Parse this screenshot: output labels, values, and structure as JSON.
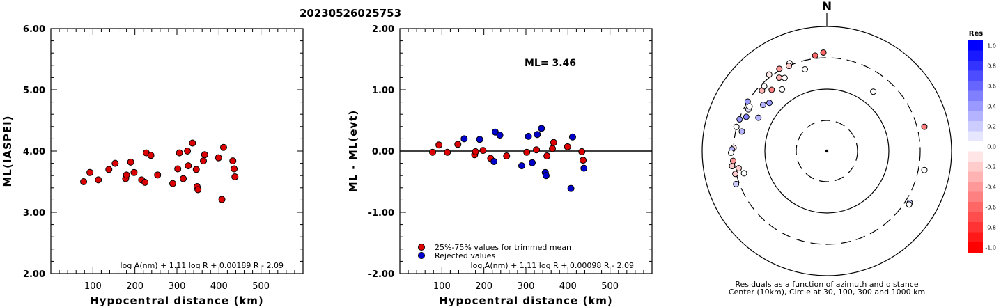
{
  "event_id": "20230526025753",
  "chart_data": [
    {
      "type": "scatter",
      "id": "left",
      "xlabel": "Hypocentral distance (km)",
      "ylabel": "ML(IASPEI)",
      "xlim": [
        0,
        600
      ],
      "ylim": [
        2.0,
        6.0
      ],
      "xticks": [
        "100",
        "200",
        "300",
        "400",
        "500"
      ],
      "yticks": [
        "2.00",
        "3.00",
        "4.00",
        "5.00",
        "6.00"
      ],
      "formula": "log A(nm) + 1.11 log R + 0.00189 R - 2.09",
      "series": [
        {
          "color": "#dd0000",
          "points": [
            [
              78,
              3.5
            ],
            [
              93,
              3.65
            ],
            [
              113,
              3.53
            ],
            [
              138,
              3.7
            ],
            [
              153,
              3.8
            ],
            [
              178,
              3.55
            ],
            [
              180,
              3.61
            ],
            [
              190,
              3.82
            ],
            [
              198,
              3.65
            ],
            [
              216,
              3.53
            ],
            [
              224,
              3.49
            ],
            [
              227,
              3.97
            ],
            [
              238,
              3.93
            ],
            [
              254,
              3.61
            ],
            [
              290,
              3.47
            ],
            [
              302,
              3.71
            ],
            [
              306,
              3.97
            ],
            [
              315,
              3.55
            ],
            [
              325,
              4.0
            ],
            [
              327,
              3.76
            ],
            [
              337,
              4.13
            ],
            [
              346,
              3.7
            ],
            [
              348,
              3.42
            ],
            [
              350,
              3.37
            ],
            [
              363,
              3.84
            ],
            [
              366,
              3.94
            ],
            [
              399,
              3.89
            ],
            [
              407,
              3.21
            ],
            [
              411,
              4.06
            ],
            [
              433,
              3.84
            ],
            [
              436,
              3.71
            ],
            [
              438,
              3.58
            ]
          ]
        }
      ]
    },
    {
      "type": "scatter",
      "id": "middle",
      "xlabel": "Hypocentral distance (km)",
      "ylabel": "ML - ML(evt)",
      "xlim": [
        0,
        600
      ],
      "ylim": [
        -2.0,
        2.0
      ],
      "xticks": [
        "100",
        "200",
        "300",
        "400",
        "500"
      ],
      "yticks": [
        "-2.00",
        "-1.00",
        "0.00",
        "1.00",
        "2.00"
      ],
      "annotation": "ML= 3.46",
      "formula": "log A(nm) + 1.11 log R + 0.00098 R - 2.09",
      "legend": [
        "25%-75% values for trimmed mean",
        "Rejected values"
      ],
      "series": [
        {
          "name": "25%-75% values for trimmed mean",
          "color": "#dd0000",
          "points": [
            [
              78,
              -0.02
            ],
            [
              93,
              0.1
            ],
            [
              113,
              -0.02
            ],
            [
              138,
              0.11
            ],
            [
              178,
              -0.06
            ],
            [
              180,
              -0.01
            ],
            [
              198,
              0.01
            ],
            [
              216,
              -0.12
            ],
            [
              254,
              -0.08
            ],
            [
              302,
              -0.02
            ],
            [
              325,
              0.02
            ],
            [
              350,
              -0.08
            ],
            [
              363,
              0.04
            ],
            [
              366,
              0.14
            ],
            [
              399,
              0.07
            ],
            [
              433,
              -0.01
            ],
            [
              436,
              -0.15
            ]
          ]
        },
        {
          "name": "Rejected values",
          "color": "#0000cc",
          "points": [
            [
              153,
              0.2
            ],
            [
              190,
              0.19
            ],
            [
              224,
              -0.17
            ],
            [
              227,
              0.31
            ],
            [
              238,
              0.26
            ],
            [
              290,
              -0.24
            ],
            [
              306,
              0.24
            ],
            [
              315,
              -0.19
            ],
            [
              327,
              0.27
            ],
            [
              337,
              0.37
            ],
            [
              346,
              -0.35
            ],
            [
              348,
              -0.4
            ],
            [
              407,
              -0.61
            ],
            [
              411,
              0.23
            ],
            [
              438,
              -0.28
            ]
          ]
        }
      ]
    },
    {
      "type": "scatter",
      "id": "polar",
      "coordinate_system": "polar (azimuth, distance)",
      "north_label": "N",
      "caption_1": "Residuals as a function of azimuth and distance",
      "caption_2": "Center (10km), Circle at 30, 100, 300 and 1000 km",
      "rings_km": [
        30,
        100,
        300,
        1000
      ],
      "colorbar": {
        "title": "Res",
        "labels": [
          "1.0",
          "0.8",
          "0.6",
          "0.4",
          "0.2",
          "0.0",
          "-0.2",
          "-0.4",
          "-0.6",
          "-0.8",
          "-1.0"
        ],
        "max_color": "#0000ff",
        "mid_color": "#ffffff",
        "min_color": "#ff0000"
      },
      "points": [
        {
          "az": 330,
          "dist": 320,
          "res": -0.4
        },
        {
          "az": 337,
          "dist": 325,
          "res": 0.0
        },
        {
          "az": 327,
          "dist": 245,
          "res": -0.3
        },
        {
          "az": 318,
          "dist": 205,
          "res": -0.5
        },
        {
          "az": 313,
          "dist": 255,
          "res": -0.3
        },
        {
          "az": 324,
          "dist": 165,
          "res": 0.0
        },
        {
          "az": 310,
          "dist": 158,
          "res": 0.4
        },
        {
          "az": 306,
          "dist": 180,
          "res": 0.3
        },
        {
          "az": 302,
          "dist": 300,
          "res": 0.4
        },
        {
          "az": 298,
          "dist": 256,
          "res": 0.1
        },
        {
          "az": 296,
          "dist": 164,
          "res": 0.3
        },
        {
          "az": 293,
          "dist": 245,
          "res": 0.5
        },
        {
          "az": 290,
          "dist": 295,
          "res": 0.4
        },
        {
          "az": 285,
          "dist": 303,
          "res": 0.0
        },
        {
          "az": 283,
          "dist": 242,
          "res": 0.3
        },
        {
          "az": 272,
          "dist": 300,
          "res": -0.1
        },
        {
          "az": 271,
          "dist": 318,
          "res": 0.3
        },
        {
          "az": 269,
          "dist": 330,
          "res": 0.0
        },
        {
          "az": 261,
          "dist": 332,
          "res": -0.2
        },
        {
          "az": 256,
          "dist": 312,
          "res": -0.2
        },
        {
          "az": 250,
          "dist": 340,
          "res": 0.2
        },
        {
          "az": 264,
          "dist": 310,
          "res": -0.4
        },
        {
          "az": 259,
          "dist": 265,
          "res": -0.2
        },
        {
          "az": 255,
          "dist": 230,
          "res": 0.0
        },
        {
          "az": 353,
          "dist": 335,
          "res": -0.6
        },
        {
          "az": 358,
          "dist": 368,
          "res": -0.6
        },
        {
          "az": 336,
          "dist": 300,
          "res": -0.2
        },
        {
          "az": 330,
          "dist": 220,
          "res": 0.0
        },
        {
          "az": 345,
          "dist": 222,
          "res": 0.0
        },
        {
          "az": 38,
          "dist": 160,
          "res": 0.0
        },
        {
          "az": 76,
          "dist": 395,
          "res": -0.5
        },
        {
          "az": 101,
          "dist": 378,
          "res": 0.0
        },
        {
          "az": 122,
          "dist": 355,
          "res": 0.2
        },
        {
          "az": 123,
          "dist": 360,
          "res": 0.0
        },
        {
          "az": 323,
          "dist": 330,
          "res": -0.1
        },
        {
          "az": 316,
          "dist": 268,
          "res": 0.0
        },
        {
          "az": 300,
          "dist": 260,
          "res": 0.0
        }
      ]
    }
  ]
}
